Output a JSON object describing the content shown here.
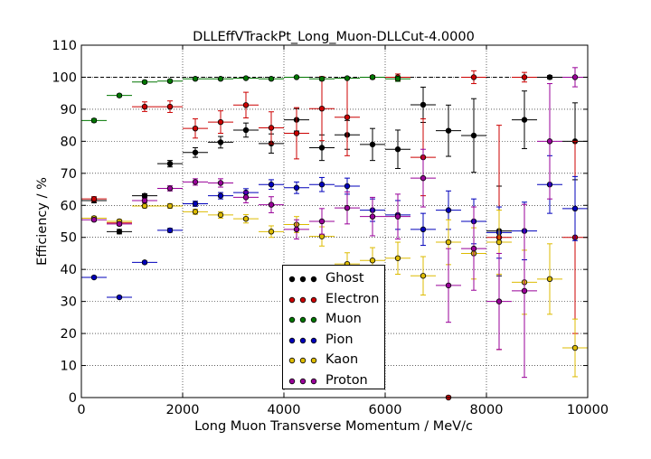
{
  "chart_data": {
    "type": "scatter",
    "title": "DLLEffVTrackPt_Long_Muon-DLLCut-4.0000",
    "xlabel": "Long Muon Transverse Momentum / MeV/c",
    "ylabel": "Efficiency / %",
    "xlim": [
      0,
      10000
    ],
    "ylim": [
      0,
      110
    ],
    "xticks": [
      0,
      2000,
      4000,
      6000,
      8000,
      10000
    ],
    "yticks": [
      0,
      10,
      20,
      30,
      40,
      50,
      60,
      70,
      80,
      90,
      100,
      110
    ],
    "grid": true,
    "reference_line": 100,
    "legend_position": "lower-center",
    "x_bin_half_width": 250,
    "x": [
      250,
      750,
      1250,
      1750,
      2250,
      2750,
      3250,
      3750,
      4250,
      4750,
      5250,
      5750,
      6250,
      6750,
      7250,
      7750,
      8250,
      8750,
      9250,
      9750
    ],
    "series": [
      {
        "name": "Ghost",
        "color": "#000000",
        "values": [
          61.5,
          51.8,
          63.0,
          73.0,
          76.5,
          79.7,
          83.5,
          79.3,
          86.7,
          78.0,
          82.0,
          79.0,
          77.5,
          91.4,
          83.3,
          81.8,
          52.0,
          86.7,
          100.0,
          80.0
        ],
        "errors": [
          0.7,
          0.7,
          0.6,
          1.0,
          1.5,
          1.8,
          2.2,
          3.0,
          3.5,
          4.0,
          4.5,
          5.0,
          6.0,
          5.5,
          8.0,
          11.5,
          14.0,
          9.0,
          0.5,
          12.0
        ]
      },
      {
        "name": "Electron",
        "color": "#cc0000",
        "values": [
          62.0,
          54.5,
          90.8,
          90.8,
          84.0,
          86.0,
          91.3,
          84.2,
          82.5,
          90.2,
          87.5,
          100.0,
          100.0,
          75.0,
          0.0,
          100.0,
          50.0,
          100.0,
          null,
          50.0
        ],
        "errors": [
          0.7,
          0.5,
          1.5,
          1.8,
          3.0,
          3.5,
          4.0,
          5.0,
          8.0,
          10.0,
          12.0,
          0.5,
          1.0,
          12.0,
          0.5,
          2.0,
          35.0,
          1.5,
          null,
          30.0
        ]
      },
      {
        "name": "Muon",
        "color": "#007700",
        "values": [
          86.5,
          94.3,
          98.5,
          98.8,
          99.5,
          99.5,
          99.7,
          99.5,
          100.0,
          99.5,
          99.7,
          100.0,
          99.5,
          null,
          null,
          null,
          null,
          null,
          null,
          null
        ],
        "errors": [
          0.5,
          0.4,
          0.4,
          0.4,
          0.3,
          0.3,
          0.3,
          0.3,
          0.2,
          0.5,
          0.3,
          0.2,
          0.8,
          null,
          null,
          null,
          null,
          null,
          null,
          null
        ]
      },
      {
        "name": "Pion",
        "color": "#0000bb",
        "values": [
          37.5,
          31.3,
          42.2,
          52.2,
          60.5,
          63.0,
          64.0,
          66.5,
          65.5,
          66.5,
          66.0,
          58.5,
          57.0,
          52.5,
          58.5,
          55.0,
          51.5,
          52.0,
          66.5,
          59.0
        ],
        "errors": [
          0.3,
          0.3,
          0.4,
          0.6,
          0.8,
          1.0,
          1.2,
          1.5,
          1.8,
          2.2,
          2.5,
          3.5,
          4.5,
          5.0,
          6.0,
          7.0,
          8.0,
          9.0,
          9.0,
          10.0
        ]
      },
      {
        "name": "Kaon",
        "color": "#ddbb00",
        "values": [
          56.0,
          55.0,
          59.8,
          59.8,
          58.0,
          57.0,
          55.8,
          51.8,
          54.0,
          50.3,
          41.7,
          42.8,
          43.5,
          38.0,
          48.5,
          45.0,
          48.5,
          36.0,
          37.0,
          15.5
        ],
        "errors": [
          0.6,
          0.6,
          0.6,
          0.7,
          0.8,
          1.0,
          1.3,
          1.8,
          2.5,
          3.0,
          3.5,
          4.0,
          5.0,
          6.0,
          7.0,
          8.0,
          10.0,
          10.0,
          11.0,
          9.0
        ]
      },
      {
        "name": "Proton",
        "color": "#990099",
        "values": [
          55.5,
          54.2,
          61.5,
          65.3,
          67.3,
          67.0,
          62.5,
          60.2,
          52.5,
          55.0,
          59.2,
          56.5,
          56.5,
          68.5,
          35.0,
          46.5,
          30.0,
          33.3,
          80.0,
          100.0
        ],
        "errors": [
          0.4,
          0.5,
          0.7,
          0.8,
          1.0,
          1.3,
          1.7,
          2.5,
          3.0,
          4.0,
          5.0,
          6.0,
          7.0,
          9.0,
          11.5,
          13.0,
          15.0,
          27.0,
          18.0,
          3.0
        ]
      }
    ]
  }
}
